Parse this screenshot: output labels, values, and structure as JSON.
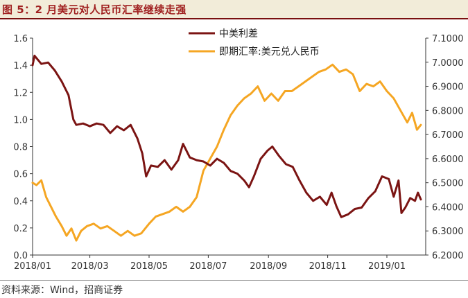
{
  "title": "图 5：2 月美元对人民币汇率继续走强",
  "source": "资料来源：Wind，招商证券",
  "colors": {
    "spread": "#7b1413",
    "fx": "#f5a623",
    "title": "#a02020",
    "axis": "#333333"
  },
  "chart_data": {
    "type": "line",
    "legend_position": "top-center",
    "x_ticks": [
      "2018/01",
      "2018/03",
      "2018/05",
      "2018/07",
      "2018/09",
      "2018/11",
      "2019/01"
    ],
    "y_left": {
      "range": [
        0.0,
        1.6
      ],
      "ticks": [
        "0.0",
        "0.2",
        "0.4",
        "0.6",
        "0.8",
        "1.0",
        "1.2",
        "1.4",
        "1.6"
      ]
    },
    "y_right": {
      "range": [
        6.2,
        7.1
      ],
      "ticks": [
        "6.2000",
        "6.3000",
        "6.4000",
        "6.5000",
        "6.6000",
        "6.7000",
        "6.8000",
        "6.9000",
        "7.0000",
        "7.1000"
      ]
    },
    "series": [
      {
        "name": "中美利差",
        "axis": "left",
        "points": [
          [
            "2018-01-01",
            1.4
          ],
          [
            "2018-01-03",
            1.47
          ],
          [
            "2018-01-10",
            1.41
          ],
          [
            "2018-01-17",
            1.42
          ],
          [
            "2018-01-24",
            1.36
          ],
          [
            "2018-01-31",
            1.28
          ],
          [
            "2018-02-07",
            1.18
          ],
          [
            "2018-02-12",
            1.0
          ],
          [
            "2018-02-15",
            0.96
          ],
          [
            "2018-02-22",
            0.97
          ],
          [
            "2018-03-01",
            0.95
          ],
          [
            "2018-03-08",
            0.97
          ],
          [
            "2018-03-15",
            0.96
          ],
          [
            "2018-03-22",
            0.9
          ],
          [
            "2018-03-29",
            0.95
          ],
          [
            "2018-04-05",
            0.92
          ],
          [
            "2018-04-12",
            0.96
          ],
          [
            "2018-04-19",
            0.86
          ],
          [
            "2018-04-24",
            0.75
          ],
          [
            "2018-04-28",
            0.58
          ],
          [
            "2018-05-03",
            0.66
          ],
          [
            "2018-05-10",
            0.65
          ],
          [
            "2018-05-17",
            0.7
          ],
          [
            "2018-05-24",
            0.63
          ],
          [
            "2018-05-31",
            0.7
          ],
          [
            "2018-06-05",
            0.82
          ],
          [
            "2018-06-12",
            0.72
          ],
          [
            "2018-06-19",
            0.7
          ],
          [
            "2018-06-26",
            0.69
          ],
          [
            "2018-07-03",
            0.66
          ],
          [
            "2018-07-10",
            0.71
          ],
          [
            "2018-07-17",
            0.68
          ],
          [
            "2018-07-24",
            0.62
          ],
          [
            "2018-07-31",
            0.6
          ],
          [
            "2018-08-07",
            0.55
          ],
          [
            "2018-08-12",
            0.5
          ],
          [
            "2018-08-17",
            0.58
          ],
          [
            "2018-08-24",
            0.71
          ],
          [
            "2018-08-31",
            0.77
          ],
          [
            "2018-09-05",
            0.8
          ],
          [
            "2018-09-12",
            0.73
          ],
          [
            "2018-09-19",
            0.67
          ],
          [
            "2018-09-26",
            0.65
          ],
          [
            "2018-10-03",
            0.55
          ],
          [
            "2018-10-10",
            0.46
          ],
          [
            "2018-10-17",
            0.4
          ],
          [
            "2018-10-24",
            0.43
          ],
          [
            "2018-10-31",
            0.37
          ],
          [
            "2018-11-05",
            0.46
          ],
          [
            "2018-11-10",
            0.36
          ],
          [
            "2018-11-15",
            0.28
          ],
          [
            "2018-11-22",
            0.3
          ],
          [
            "2018-11-29",
            0.34
          ],
          [
            "2018-12-06",
            0.35
          ],
          [
            "2018-12-13",
            0.42
          ],
          [
            "2018-12-20",
            0.47
          ],
          [
            "2018-12-27",
            0.58
          ],
          [
            "2019-01-03",
            0.56
          ],
          [
            "2019-01-08",
            0.43
          ],
          [
            "2019-01-13",
            0.55
          ],
          [
            "2019-01-16",
            0.31
          ],
          [
            "2019-01-20",
            0.35
          ],
          [
            "2019-01-25",
            0.42
          ],
          [
            "2019-01-30",
            0.4
          ],
          [
            "2019-02-02",
            0.46
          ],
          [
            "2019-02-05",
            0.41
          ]
        ]
      },
      {
        "name": "即期汇率:美元兑人民币",
        "axis": "right",
        "points": [
          [
            "2018-01-01",
            6.5
          ],
          [
            "2018-01-05",
            6.49
          ],
          [
            "2018-01-10",
            6.51
          ],
          [
            "2018-01-15",
            6.44
          ],
          [
            "2018-01-20",
            6.4
          ],
          [
            "2018-01-25",
            6.36
          ],
          [
            "2018-01-31",
            6.32
          ],
          [
            "2018-02-05",
            6.28
          ],
          [
            "2018-02-10",
            6.31
          ],
          [
            "2018-02-15",
            6.26
          ],
          [
            "2018-02-20",
            6.3
          ],
          [
            "2018-02-26",
            6.32
          ],
          [
            "2018-03-05",
            6.33
          ],
          [
            "2018-03-12",
            6.31
          ],
          [
            "2018-03-19",
            6.32
          ],
          [
            "2018-03-26",
            6.3
          ],
          [
            "2018-04-02",
            6.28
          ],
          [
            "2018-04-09",
            6.3
          ],
          [
            "2018-04-16",
            6.28
          ],
          [
            "2018-04-23",
            6.29
          ],
          [
            "2018-05-01",
            6.33
          ],
          [
            "2018-05-08",
            6.36
          ],
          [
            "2018-05-15",
            6.37
          ],
          [
            "2018-05-22",
            6.38
          ],
          [
            "2018-05-29",
            6.4
          ],
          [
            "2018-06-05",
            6.38
          ],
          [
            "2018-06-12",
            6.4
          ],
          [
            "2018-06-19",
            6.44
          ],
          [
            "2018-06-26",
            6.55
          ],
          [
            "2018-07-03",
            6.6
          ],
          [
            "2018-07-10",
            6.65
          ],
          [
            "2018-07-17",
            6.72
          ],
          [
            "2018-07-24",
            6.78
          ],
          [
            "2018-07-31",
            6.82
          ],
          [
            "2018-08-07",
            6.85
          ],
          [
            "2018-08-14",
            6.87
          ],
          [
            "2018-08-21",
            6.9
          ],
          [
            "2018-08-28",
            6.84
          ],
          [
            "2018-09-04",
            6.87
          ],
          [
            "2018-09-11",
            6.84
          ],
          [
            "2018-09-18",
            6.88
          ],
          [
            "2018-09-25",
            6.88
          ],
          [
            "2018-10-02",
            6.9
          ],
          [
            "2018-10-09",
            6.92
          ],
          [
            "2018-10-16",
            6.94
          ],
          [
            "2018-10-23",
            6.96
          ],
          [
            "2018-10-30",
            6.97
          ],
          [
            "2018-11-06",
            6.99
          ],
          [
            "2018-11-13",
            6.96
          ],
          [
            "2018-11-20",
            6.97
          ],
          [
            "2018-11-27",
            6.95
          ],
          [
            "2018-12-04",
            6.88
          ],
          [
            "2018-12-11",
            6.91
          ],
          [
            "2018-12-18",
            6.9
          ],
          [
            "2018-12-25",
            6.92
          ],
          [
            "2019-01-01",
            6.88
          ],
          [
            "2019-01-08",
            6.85
          ],
          [
            "2019-01-15",
            6.8
          ],
          [
            "2019-01-22",
            6.75
          ],
          [
            "2019-01-27",
            6.79
          ],
          [
            "2019-02-01",
            6.72
          ],
          [
            "2019-02-05",
            6.74
          ]
        ]
      }
    ]
  }
}
